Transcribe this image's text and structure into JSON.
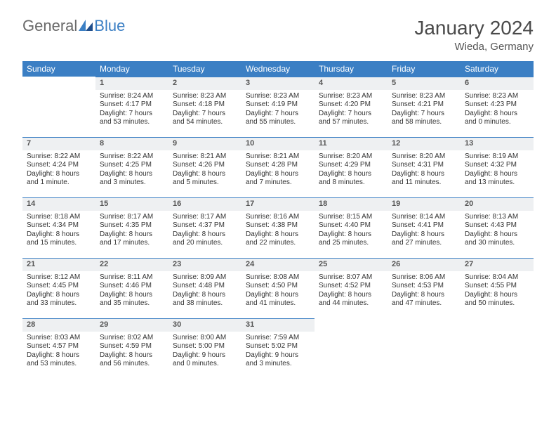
{
  "logo": {
    "part1": "General",
    "part2": "Blue"
  },
  "title": "January 2024",
  "location": "Wieda, Germany",
  "colors": {
    "header_bg": "#3b7fc4",
    "header_text": "#ffffff",
    "daynum_bg": "#eef0f2",
    "daynum_border": "#3b7fc4",
    "text": "#333333",
    "page_bg": "#ffffff"
  },
  "weekdays": [
    "Sunday",
    "Monday",
    "Tuesday",
    "Wednesday",
    "Thursday",
    "Friday",
    "Saturday"
  ],
  "weeks": [
    [
      null,
      {
        "n": "1",
        "sr": "Sunrise: 8:24 AM",
        "ss": "Sunset: 4:17 PM",
        "dl1": "Daylight: 7 hours",
        "dl2": "and 53 minutes."
      },
      {
        "n": "2",
        "sr": "Sunrise: 8:23 AM",
        "ss": "Sunset: 4:18 PM",
        "dl1": "Daylight: 7 hours",
        "dl2": "and 54 minutes."
      },
      {
        "n": "3",
        "sr": "Sunrise: 8:23 AM",
        "ss": "Sunset: 4:19 PM",
        "dl1": "Daylight: 7 hours",
        "dl2": "and 55 minutes."
      },
      {
        "n": "4",
        "sr": "Sunrise: 8:23 AM",
        "ss": "Sunset: 4:20 PM",
        "dl1": "Daylight: 7 hours",
        "dl2": "and 57 minutes."
      },
      {
        "n": "5",
        "sr": "Sunrise: 8:23 AM",
        "ss": "Sunset: 4:21 PM",
        "dl1": "Daylight: 7 hours",
        "dl2": "and 58 minutes."
      },
      {
        "n": "6",
        "sr": "Sunrise: 8:23 AM",
        "ss": "Sunset: 4:23 PM",
        "dl1": "Daylight: 8 hours",
        "dl2": "and 0 minutes."
      }
    ],
    [
      {
        "n": "7",
        "sr": "Sunrise: 8:22 AM",
        "ss": "Sunset: 4:24 PM",
        "dl1": "Daylight: 8 hours",
        "dl2": "and 1 minute."
      },
      {
        "n": "8",
        "sr": "Sunrise: 8:22 AM",
        "ss": "Sunset: 4:25 PM",
        "dl1": "Daylight: 8 hours",
        "dl2": "and 3 minutes."
      },
      {
        "n": "9",
        "sr": "Sunrise: 8:21 AM",
        "ss": "Sunset: 4:26 PM",
        "dl1": "Daylight: 8 hours",
        "dl2": "and 5 minutes."
      },
      {
        "n": "10",
        "sr": "Sunrise: 8:21 AM",
        "ss": "Sunset: 4:28 PM",
        "dl1": "Daylight: 8 hours",
        "dl2": "and 7 minutes."
      },
      {
        "n": "11",
        "sr": "Sunrise: 8:20 AM",
        "ss": "Sunset: 4:29 PM",
        "dl1": "Daylight: 8 hours",
        "dl2": "and 8 minutes."
      },
      {
        "n": "12",
        "sr": "Sunrise: 8:20 AM",
        "ss": "Sunset: 4:31 PM",
        "dl1": "Daylight: 8 hours",
        "dl2": "and 11 minutes."
      },
      {
        "n": "13",
        "sr": "Sunrise: 8:19 AM",
        "ss": "Sunset: 4:32 PM",
        "dl1": "Daylight: 8 hours",
        "dl2": "and 13 minutes."
      }
    ],
    [
      {
        "n": "14",
        "sr": "Sunrise: 8:18 AM",
        "ss": "Sunset: 4:34 PM",
        "dl1": "Daylight: 8 hours",
        "dl2": "and 15 minutes."
      },
      {
        "n": "15",
        "sr": "Sunrise: 8:17 AM",
        "ss": "Sunset: 4:35 PM",
        "dl1": "Daylight: 8 hours",
        "dl2": "and 17 minutes."
      },
      {
        "n": "16",
        "sr": "Sunrise: 8:17 AM",
        "ss": "Sunset: 4:37 PM",
        "dl1": "Daylight: 8 hours",
        "dl2": "and 20 minutes."
      },
      {
        "n": "17",
        "sr": "Sunrise: 8:16 AM",
        "ss": "Sunset: 4:38 PM",
        "dl1": "Daylight: 8 hours",
        "dl2": "and 22 minutes."
      },
      {
        "n": "18",
        "sr": "Sunrise: 8:15 AM",
        "ss": "Sunset: 4:40 PM",
        "dl1": "Daylight: 8 hours",
        "dl2": "and 25 minutes."
      },
      {
        "n": "19",
        "sr": "Sunrise: 8:14 AM",
        "ss": "Sunset: 4:41 PM",
        "dl1": "Daylight: 8 hours",
        "dl2": "and 27 minutes."
      },
      {
        "n": "20",
        "sr": "Sunrise: 8:13 AM",
        "ss": "Sunset: 4:43 PM",
        "dl1": "Daylight: 8 hours",
        "dl2": "and 30 minutes."
      }
    ],
    [
      {
        "n": "21",
        "sr": "Sunrise: 8:12 AM",
        "ss": "Sunset: 4:45 PM",
        "dl1": "Daylight: 8 hours",
        "dl2": "and 33 minutes."
      },
      {
        "n": "22",
        "sr": "Sunrise: 8:11 AM",
        "ss": "Sunset: 4:46 PM",
        "dl1": "Daylight: 8 hours",
        "dl2": "and 35 minutes."
      },
      {
        "n": "23",
        "sr": "Sunrise: 8:09 AM",
        "ss": "Sunset: 4:48 PM",
        "dl1": "Daylight: 8 hours",
        "dl2": "and 38 minutes."
      },
      {
        "n": "24",
        "sr": "Sunrise: 8:08 AM",
        "ss": "Sunset: 4:50 PM",
        "dl1": "Daylight: 8 hours",
        "dl2": "and 41 minutes."
      },
      {
        "n": "25",
        "sr": "Sunrise: 8:07 AM",
        "ss": "Sunset: 4:52 PM",
        "dl1": "Daylight: 8 hours",
        "dl2": "and 44 minutes."
      },
      {
        "n": "26",
        "sr": "Sunrise: 8:06 AM",
        "ss": "Sunset: 4:53 PM",
        "dl1": "Daylight: 8 hours",
        "dl2": "and 47 minutes."
      },
      {
        "n": "27",
        "sr": "Sunrise: 8:04 AM",
        "ss": "Sunset: 4:55 PM",
        "dl1": "Daylight: 8 hours",
        "dl2": "and 50 minutes."
      }
    ],
    [
      {
        "n": "28",
        "sr": "Sunrise: 8:03 AM",
        "ss": "Sunset: 4:57 PM",
        "dl1": "Daylight: 8 hours",
        "dl2": "and 53 minutes."
      },
      {
        "n": "29",
        "sr": "Sunrise: 8:02 AM",
        "ss": "Sunset: 4:59 PM",
        "dl1": "Daylight: 8 hours",
        "dl2": "and 56 minutes."
      },
      {
        "n": "30",
        "sr": "Sunrise: 8:00 AM",
        "ss": "Sunset: 5:00 PM",
        "dl1": "Daylight: 9 hours",
        "dl2": "and 0 minutes."
      },
      {
        "n": "31",
        "sr": "Sunrise: 7:59 AM",
        "ss": "Sunset: 5:02 PM",
        "dl1": "Daylight: 9 hours",
        "dl2": "and 3 minutes."
      },
      null,
      null,
      null
    ]
  ]
}
